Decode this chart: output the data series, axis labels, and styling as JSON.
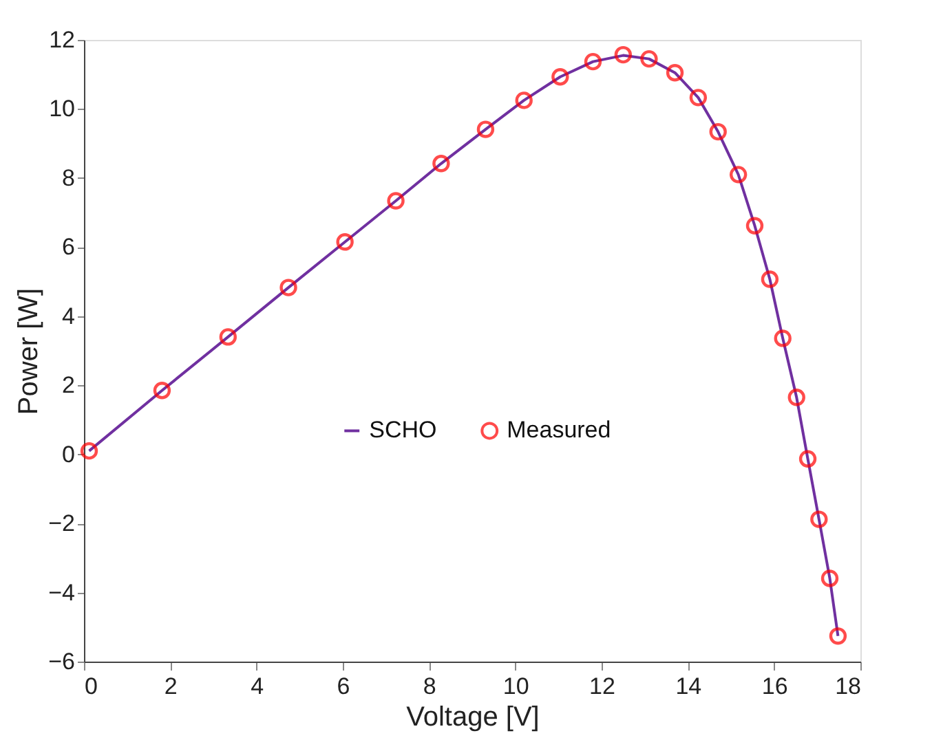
{
  "chart_data": {
    "type": "line",
    "xlabel": "Voltage [V]",
    "ylabel": "Power [W]",
    "xlim": [
      0,
      18
    ],
    "xticks": [
      0,
      2,
      4,
      6,
      8,
      10,
      12,
      14,
      16,
      18
    ],
    "ylim": [
      -6,
      12
    ],
    "yticks": [
      -6,
      -4,
      -2,
      0,
      2,
      4,
      6,
      8,
      10,
      12
    ],
    "grid": false,
    "legend": "center",
    "series": [
      {
        "name": "SCHO",
        "type": "line",
        "color": "#7030a0",
        "marker": "none",
        "line_style": "solid",
        "x": [
          0.12,
          1.81,
          3.34,
          4.74,
          6.05,
          7.23,
          8.28,
          9.31,
          10.2,
          11.04,
          11.8,
          12.5,
          13.1,
          13.7,
          14.24,
          14.7,
          15.17,
          15.55,
          15.9,
          16.2,
          16.52,
          16.78,
          17.04,
          17.29,
          17.48
        ],
        "values": [
          0.1,
          1.85,
          3.4,
          4.83,
          6.15,
          7.34,
          8.42,
          9.41,
          10.25,
          10.93,
          11.37,
          11.55,
          11.45,
          11.05,
          10.33,
          9.34,
          8.1,
          6.62,
          5.07,
          3.36,
          1.65,
          -0.13,
          -1.88,
          -3.59,
          -5.26
        ]
      },
      {
        "name": "Measured",
        "type": "scatter",
        "color": "#ff0000",
        "marker": "circle",
        "x": [
          0.12,
          1.81,
          3.34,
          4.74,
          6.05,
          7.23,
          8.28,
          9.31,
          10.2,
          11.04,
          11.8,
          12.5,
          13.1,
          13.7,
          14.24,
          14.7,
          15.17,
          15.55,
          15.9,
          16.2,
          16.52,
          16.78,
          17.04,
          17.29,
          17.48
        ],
        "values": [
          0.1,
          1.85,
          3.4,
          4.83,
          6.15,
          7.34,
          8.42,
          9.41,
          10.25,
          10.93,
          11.37,
          11.57,
          11.45,
          11.05,
          10.33,
          9.34,
          8.1,
          6.62,
          5.07,
          3.36,
          1.65,
          -0.13,
          -1.88,
          -3.59,
          -5.26
        ]
      }
    ]
  }
}
